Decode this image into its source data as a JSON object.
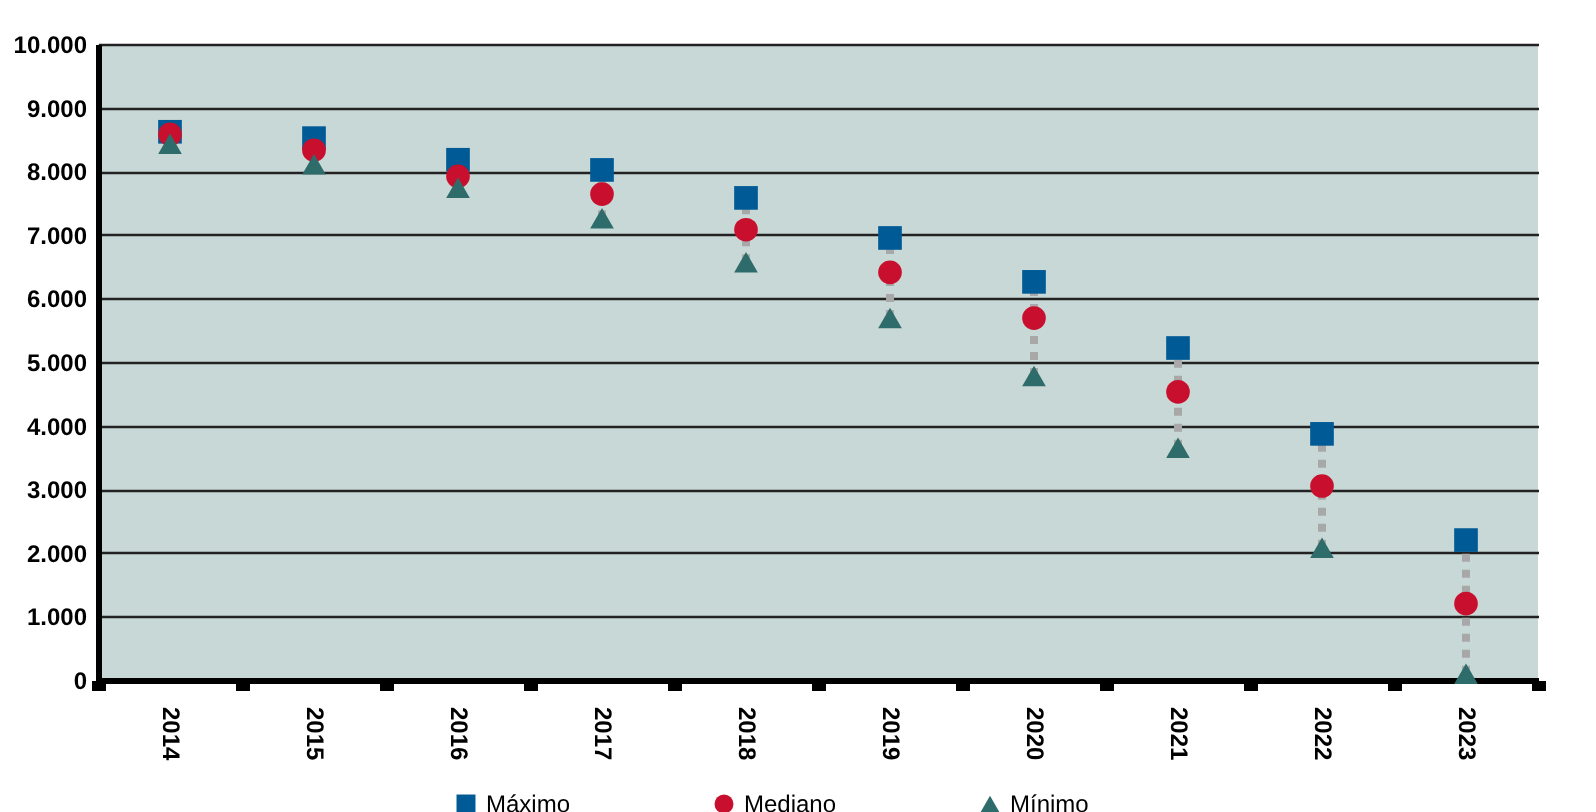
{
  "chart_data": {
    "type": "scatter",
    "categories": [
      "2014",
      "2015",
      "2016",
      "2017",
      "2018",
      "2019",
      "2020",
      "2021",
      "2022",
      "2023"
    ],
    "series": [
      {
        "name": "Máximo",
        "color": "#005a96",
        "marker": "square",
        "values": [
          8620,
          8520,
          8180,
          8020,
          7580,
          6950,
          6260,
          5220,
          3870,
          2200
        ]
      },
      {
        "name": "Mediano",
        "color": "#c8102e",
        "marker": "circle",
        "values": [
          8580,
          8330,
          7920,
          7640,
          7080,
          6410,
          5690,
          4530,
          3050,
          1200
        ]
      },
      {
        "name": "Mínimo",
        "color": "#2e6b6b",
        "marker": "triangle",
        "values": [
          8430,
          8110,
          7740,
          7260,
          6570,
          5690,
          4780,
          3650,
          2080,
          100
        ]
      }
    ],
    "ylim": [
      0,
      10000
    ],
    "yticks": [
      {
        "value": 0,
        "label": "0"
      },
      {
        "value": 1000,
        "label": "1.000"
      },
      {
        "value": 2000,
        "label": "2.000"
      },
      {
        "value": 3000,
        "label": "3.000"
      },
      {
        "value": 4000,
        "label": "4.000"
      },
      {
        "value": 5000,
        "label": "5.000"
      },
      {
        "value": 6000,
        "label": "6.000"
      },
      {
        "value": 7000,
        "label": "7.000"
      },
      {
        "value": 8000,
        "label": "8.000"
      },
      {
        "value": 9000,
        "label": "9.000"
      },
      {
        "value": 10000,
        "label": "10.000"
      }
    ],
    "grid": "y",
    "legend": "bottom"
  }
}
